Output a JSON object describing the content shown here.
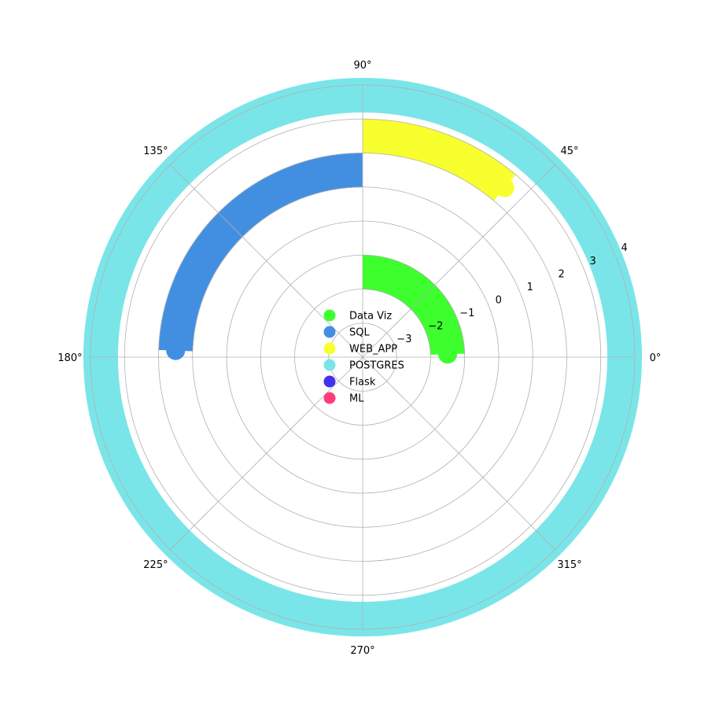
{
  "chart_data": {
    "type": "radial-bar",
    "theta_ticks": [
      "0°",
      "45°",
      "90°",
      "135°",
      "180°",
      "225°",
      "270°",
      "315°"
    ],
    "r_ticks": [
      "−3",
      "−2",
      "−1",
      "0",
      "1",
      "2",
      "3",
      "4"
    ],
    "r_tick_values": [
      -3,
      -2,
      -1,
      0,
      1,
      2,
      3,
      4
    ],
    "rlim": [
      -4,
      4
    ],
    "grid": true,
    "legend_placement": "center",
    "start_angle_deg": 90,
    "direction": "counterclockwise",
    "series": [
      {
        "name": "Data Viz",
        "color": "#3dff2e",
        "r": -1.5,
        "end_angle_deg": 2,
        "cap": true
      },
      {
        "name": "SQL",
        "color": "#428fe2",
        "r": 1.5,
        "end_angle_deg": 178,
        "cap": true
      },
      {
        "name": "WEB_APP",
        "color": "#f8ff2e",
        "r": 2.5,
        "end_angle_deg": 50,
        "cap": true
      },
      {
        "name": "POSTGRES",
        "color": "#7ae5e8",
        "r": 3.7,
        "end_angle_deg": 450,
        "cap": false
      },
      {
        "name": "Flask",
        "color": "#4330f1",
        "r": null,
        "end_angle_deg": null,
        "cap": false
      },
      {
        "name": "ML",
        "color": "#ff3c76",
        "r": null,
        "end_angle_deg": null,
        "cap": false
      }
    ]
  }
}
